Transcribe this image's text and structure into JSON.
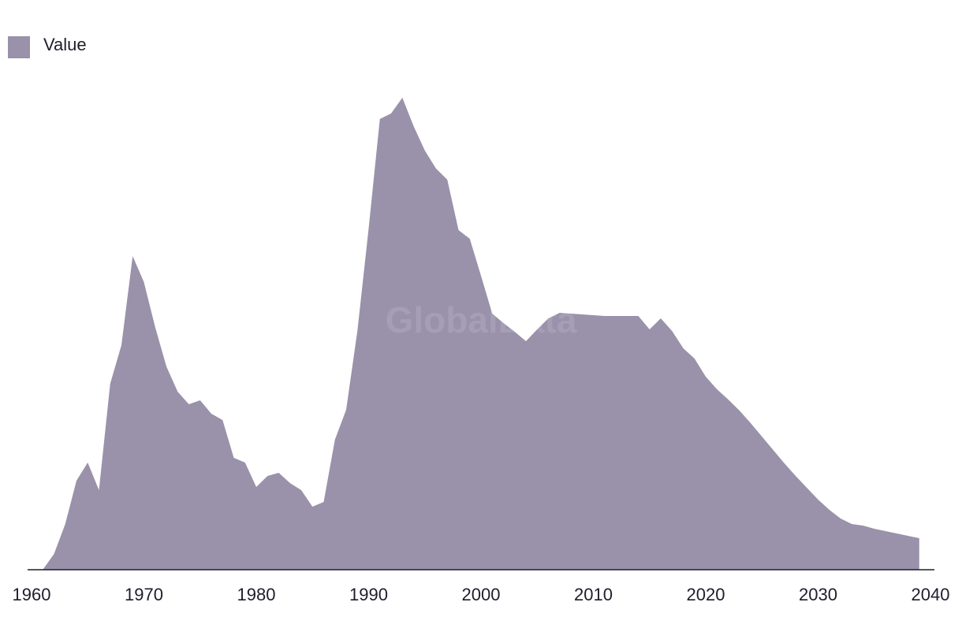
{
  "chart_data": {
    "type": "area",
    "watermark": "GlobalData",
    "x": [
      1961,
      1962,
      1963,
      1964,
      1965,
      1966,
      1967,
      1968,
      1969,
      1970,
      1971,
      1972,
      1973,
      1974,
      1975,
      1976,
      1977,
      1978,
      1979,
      1980,
      1981,
      1982,
      1983,
      1984,
      1985,
      1986,
      1987,
      1988,
      1989,
      1990,
      1991,
      1992,
      1993,
      1994,
      1995,
      1996,
      1997,
      1998,
      1999,
      2000,
      2001,
      2002,
      2003,
      2004,
      2005,
      2006,
      2007,
      2008,
      2009,
      2010,
      2011,
      2012,
      2013,
      2014,
      2015,
      2016,
      2017,
      2018,
      2019,
      2020,
      2021,
      2022,
      2023,
      2024,
      2025,
      2026,
      2027,
      2028,
      2029,
      2030,
      2031,
      2032,
      2033,
      2034,
      2035,
      2036,
      2037,
      2038,
      2039
    ],
    "series": [
      {
        "name": "Value",
        "color": "#9a91aa",
        "values": [
          0,
          20,
          58,
          113,
          136,
          101,
          236,
          285,
          398,
          365,
          308,
          258,
          226,
          210,
          215,
          198,
          190,
          142,
          136,
          105,
          119,
          123,
          110,
          101,
          80,
          86,
          165,
          203,
          303,
          433,
          572,
          579,
          599,
          563,
          532,
          509,
          495,
          431,
          420,
          373,
          325,
          313,
          302,
          290,
          305,
          319,
          326,
          325,
          324,
          323,
          322,
          322,
          322,
          322,
          305,
          319,
          303,
          281,
          268,
          245,
          229,
          216,
          202,
          186,
          169,
          152,
          135,
          119,
          104,
          89,
          76,
          65,
          58,
          56,
          52,
          49,
          46,
          43,
          40
        ]
      }
    ],
    "xlim": [
      1960,
      2040
    ],
    "xticks": [
      1960,
      1970,
      1980,
      1990,
      2000,
      2010,
      2020,
      2030,
      2040
    ],
    "ylim": [
      0,
      620
    ],
    "legend": "top-left"
  }
}
